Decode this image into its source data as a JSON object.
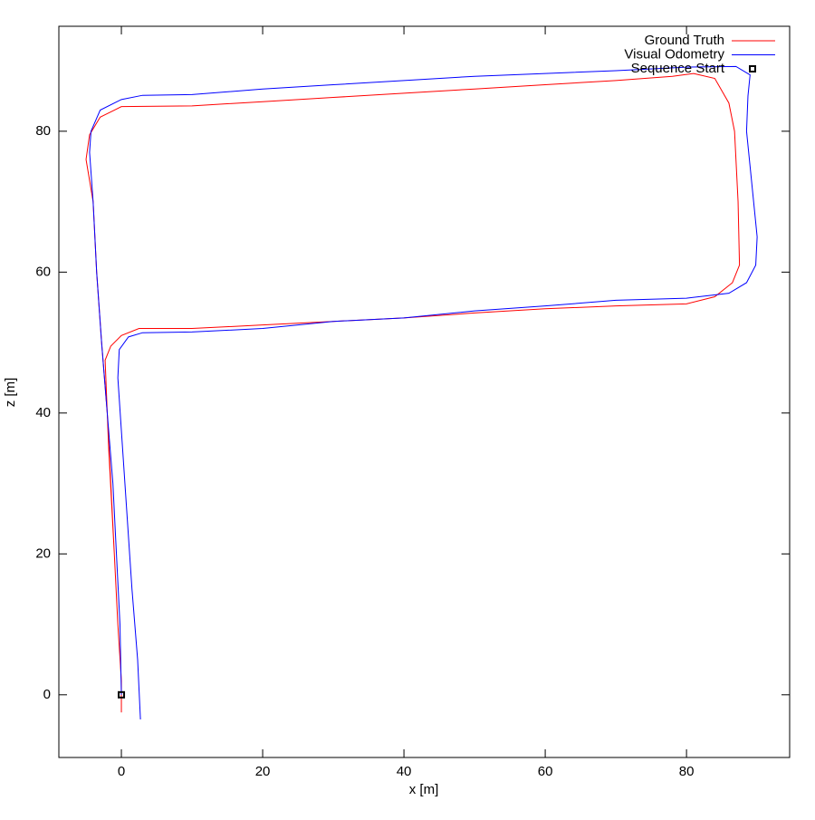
{
  "chart_data": {
    "type": "line",
    "xlabel": "x [m]",
    "ylabel": "z [m]",
    "xlim": [
      -8.85,
      94.6
    ],
    "ylim": [
      -8.9,
      94.9
    ],
    "xticks": [
      0,
      20,
      40,
      60,
      80
    ],
    "yticks": [
      0,
      20,
      40,
      60,
      80
    ],
    "legend": "top-right",
    "series": [
      {
        "name": "Ground Truth",
        "color": "#ff0000",
        "style": "lines",
        "x": [
          0,
          -0.5,
          -1,
          -1.5,
          -2,
          -2.8,
          -3.5,
          -4,
          -5,
          -4.5,
          -3,
          0,
          10,
          20,
          30,
          40,
          50,
          60,
          70,
          78,
          81,
          84,
          86,
          86.8,
          87.3,
          87.5,
          86.5,
          84,
          80,
          70,
          60,
          50,
          40,
          30,
          20,
          10,
          2.5,
          0,
          -1.5,
          -2.3,
          -1.8,
          -1,
          -0.5,
          0,
          0
        ],
        "y": [
          2,
          10,
          20,
          30,
          40,
          50,
          60,
          70,
          76,
          79.5,
          82,
          83.5,
          83.6,
          84.2,
          84.8,
          85.4,
          86,
          86.6,
          87.2,
          87.8,
          88.2,
          87.5,
          84,
          80,
          70,
          61,
          58.5,
          56.5,
          55.5,
          55.2,
          54.8,
          54.2,
          53.5,
          53,
          52.5,
          52,
          52,
          51,
          49.5,
          47.5,
          35,
          20,
          10,
          2,
          -2.5
        ]
      },
      {
        "name": "Visual Odometry",
        "color": "#0000ff",
        "style": "lines",
        "x": [
          0,
          -0.2,
          -0.7,
          -1.2,
          -2,
          -2.8,
          -3.5,
          -4,
          -4.5,
          -4.3,
          -3,
          0,
          3,
          10,
          20,
          30,
          40,
          50,
          60,
          70,
          80,
          87,
          89,
          88.7,
          88.5,
          89,
          90,
          89.8,
          88.5,
          86,
          80,
          70,
          60,
          50,
          40,
          30,
          20,
          10,
          3,
          1,
          -0.3,
          -0.5,
          0.5,
          1.5,
          2.3,
          2.7
        ],
        "y": [
          0,
          10,
          20,
          30,
          40,
          50,
          60,
          70,
          77,
          80,
          83,
          84.5,
          85.1,
          85.2,
          86,
          86.6,
          87.2,
          87.8,
          88.2,
          88.6,
          89.1,
          89.2,
          88,
          85,
          80,
          75,
          65,
          61,
          58.5,
          57,
          56.3,
          56,
          55.2,
          54.5,
          53.5,
          53,
          52,
          51.5,
          51.4,
          50.8,
          49,
          45,
          30,
          15,
          5,
          -3.5
        ]
      },
      {
        "name": "Sequence Start",
        "color": "#000000",
        "style": "points",
        "x": [
          0
        ],
        "y": [
          0
        ]
      }
    ]
  }
}
